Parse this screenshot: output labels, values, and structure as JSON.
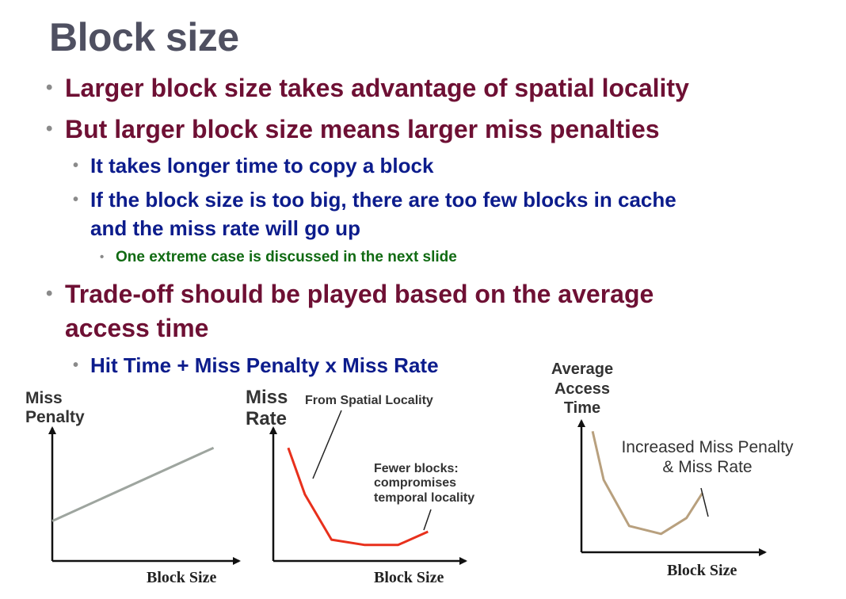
{
  "slide": {
    "title": "Block size",
    "bullets": [
      "Larger block size takes advantage of spatial locality",
      "But larger block size means larger miss penalties",
      "It takes longer time to copy a block",
      "If the block size is too big, there are too few blocks in cache",
      "and the miss rate will go up",
      "One extreme case is discussed in the next slide",
      "Trade-off should be played based on the average",
      "access time",
      "Hit Time +  Miss Penalty x Miss Rate"
    ],
    "bullet_symbol": "•"
  },
  "colors": {
    "title": "#4f5061",
    "level1": "#6e1034",
    "level2": "#0c1c8c",
    "level3": "#106a12",
    "penalty_line": "#9ea59f",
    "miss_rate_line": "#e8301c",
    "access_time_line": "#b8a07e"
  },
  "chart_data": [
    {
      "type": "line",
      "ylabel": [
        "Miss",
        "Penalty"
      ],
      "xlabel": "Block Size",
      "x": [
        0,
        1
      ],
      "series": [
        {
          "values": [
            0.3,
            0.85
          ]
        }
      ],
      "xlim": [
        0,
        1.1
      ],
      "ylim": [
        0,
        1
      ],
      "annotations": []
    },
    {
      "type": "line",
      "ylabel": [
        "Miss",
        "Rate"
      ],
      "xlabel": "Block Size",
      "x": [
        0.09,
        0.19,
        0.35,
        0.55,
        0.75,
        0.93
      ],
      "series": [
        {
          "values": [
            0.85,
            0.5,
            0.16,
            0.12,
            0.12,
            0.22
          ]
        }
      ],
      "xlim": [
        0,
        1.1
      ],
      "ylim": [
        0,
        1
      ],
      "annotations": [
        {
          "text": [
            "From Spatial Locality"
          ]
        },
        {
          "text": [
            "Fewer blocks:",
            "compromises",
            "temporal locality"
          ]
        }
      ]
    },
    {
      "type": "line",
      "ylabel": [
        "Average",
        "Access",
        "Time"
      ],
      "xlabel": "Block Size",
      "x": [
        0.07,
        0.14,
        0.3,
        0.5,
        0.66,
        0.76
      ],
      "series": [
        {
          "values": [
            0.92,
            0.55,
            0.2,
            0.14,
            0.26,
            0.45
          ]
        }
      ],
      "xlim": [
        0,
        1.1
      ],
      "ylim": [
        0,
        1
      ],
      "annotations": [
        {
          "text": [
            "Increased Miss Penalty",
            "& Miss Rate"
          ]
        }
      ]
    }
  ]
}
